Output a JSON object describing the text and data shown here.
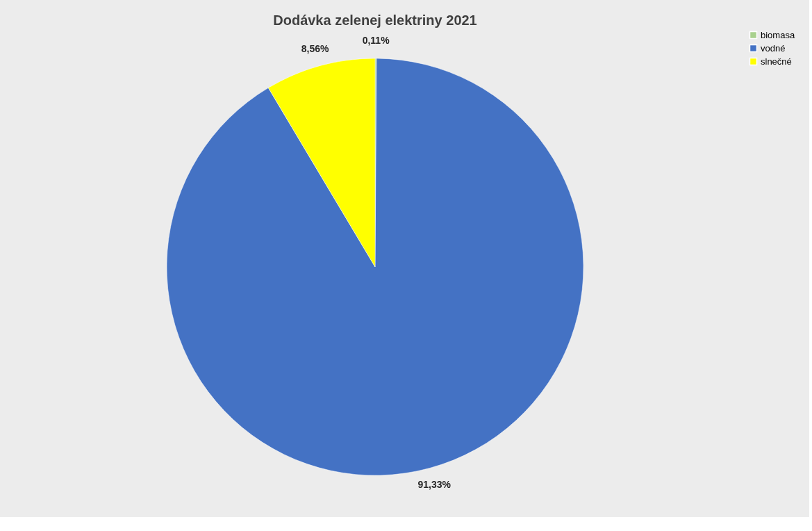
{
  "chart_data": {
    "type": "pie",
    "title": "Dodávka zelenej elektriny 2021",
    "categories": [
      "biomasa",
      "vodné",
      "slnečné"
    ],
    "values": [
      0.11,
      91.33,
      8.56
    ],
    "colors": [
      "#a9d18e",
      "#4472c4",
      "#ffff00"
    ],
    "value_labels": [
      "0,11%",
      "91,33%",
      "8,56%"
    ],
    "legend": "right"
  }
}
